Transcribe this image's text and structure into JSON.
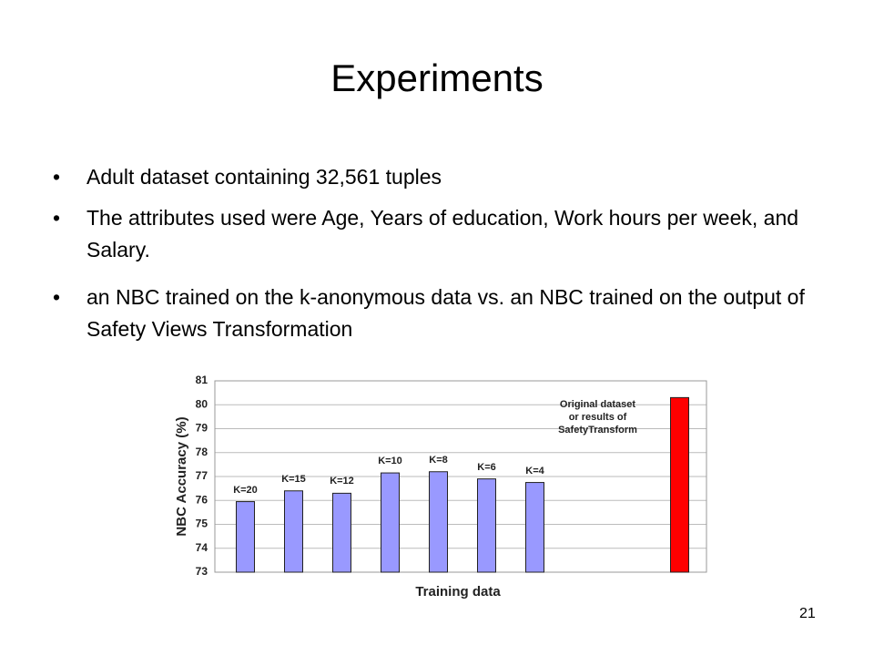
{
  "title": "Experiments",
  "bullets": [
    "Adult dataset containing 32,561 tuples",
    "The attributes used were Age, Years of education, Work hours per week, and Salary.",
    "an NBC trained on the k-anonymous data vs. an NBC trained on the output of Safety Views Transformation"
  ],
  "page_number": "21",
  "chart_data": {
    "type": "bar",
    "categories": [
      "K=20",
      "K=15",
      "K=12",
      "K=10",
      "K=8",
      "K=6",
      "K=4",
      null,
      null,
      "Original dataset\nor results of\nSafetyTransform"
    ],
    "values": [
      75.95,
      76.4,
      76.3,
      77.15,
      77.2,
      76.9,
      76.75,
      null,
      null,
      80.3
    ],
    "colors": [
      "#9999ff",
      "#9999ff",
      "#9999ff",
      "#9999ff",
      "#9999ff",
      "#9999ff",
      "#9999ff",
      null,
      null,
      "#ff0000"
    ],
    "ylim": [
      73,
      81
    ],
    "yticks": [
      73,
      74,
      75,
      76,
      77,
      78,
      79,
      80,
      81
    ],
    "grid": true,
    "ylabel": "NBC Accuracy (%)",
    "xlabel": "Training data"
  }
}
